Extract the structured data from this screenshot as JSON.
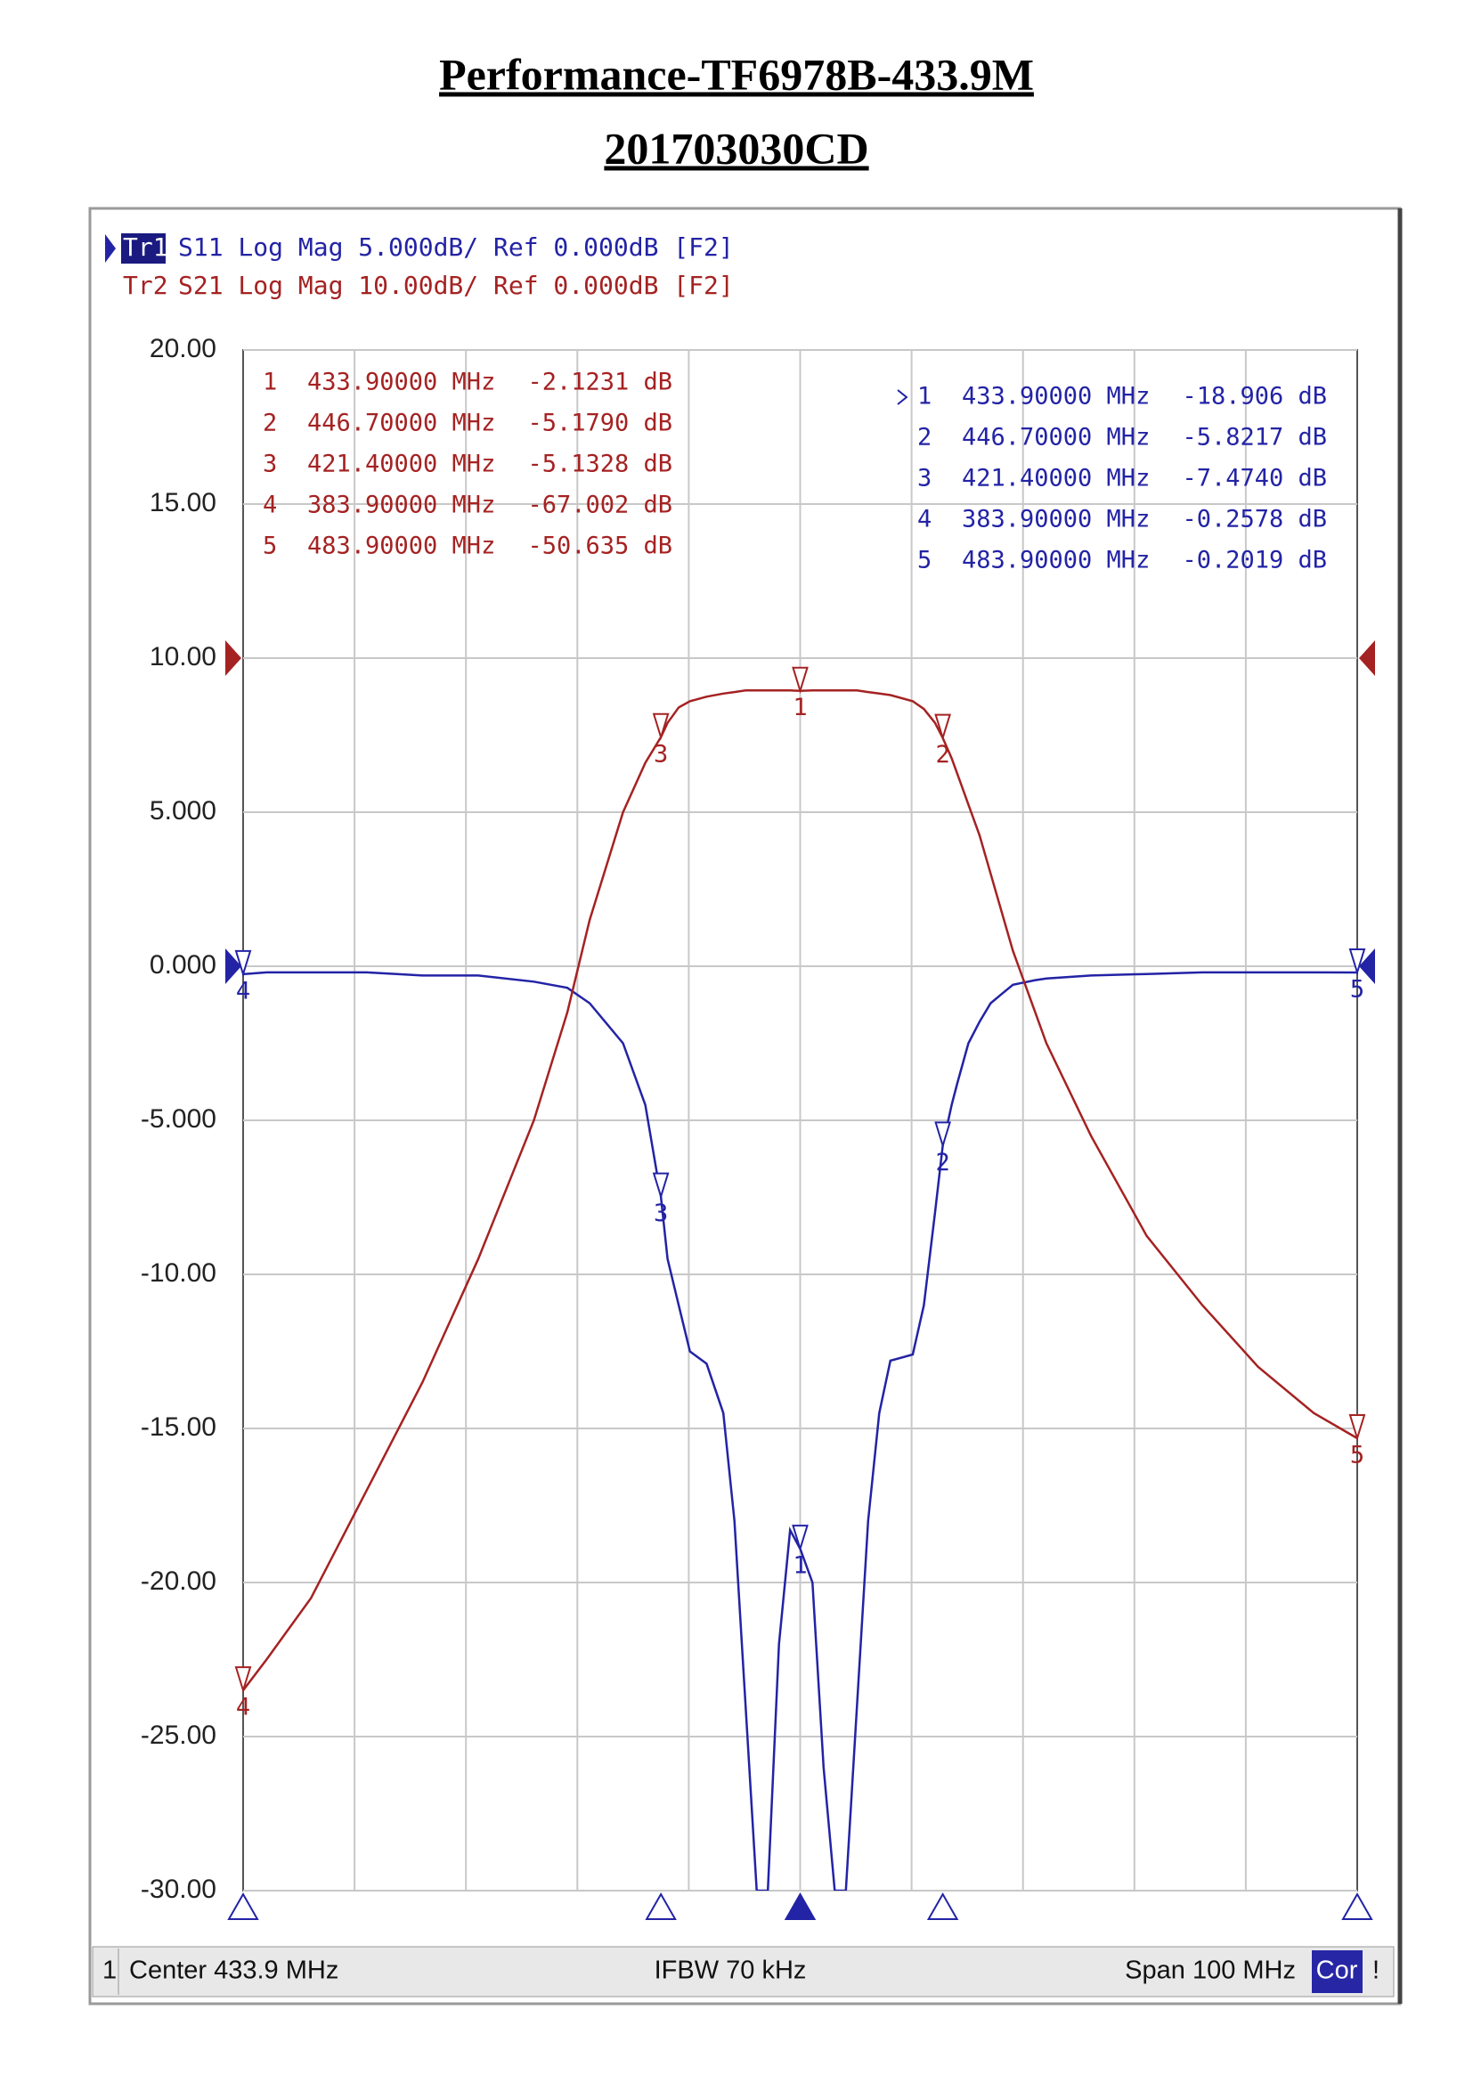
{
  "chart_data": {
    "type": "line",
    "title": "Performance-TF6978B-433.9M",
    "subtitle": "201703030CD",
    "x": [
      383.9,
      386,
      390,
      395,
      400,
      405,
      410,
      413,
      415,
      418,
      420,
      421.4,
      422,
      423,
      424,
      425.5,
      427,
      428,
      429,
      430,
      431,
      432,
      433,
      433.9,
      435,
      436,
      437,
      438,
      439,
      440,
      441,
      442,
      444,
      445,
      446,
      446.7,
      447.5,
      448,
      449,
      450,
      451,
      452,
      453,
      455,
      456,
      460,
      465,
      470,
      475,
      480,
      483.9
    ],
    "xlim": [
      383.9,
      483.9
    ],
    "ylim": [
      -30,
      20
    ],
    "y2lim": [
      -80,
      20
    ],
    "yticks": [
      {
        "value": 20,
        "label": "20.00"
      },
      {
        "value": 15,
        "label": "15.00"
      },
      {
        "value": 10,
        "label": "10.00"
      },
      {
        "value": 5,
        "label": "5.000"
      },
      {
        "value": 0,
        "label": "0.000"
      },
      {
        "value": -5,
        "label": "-5.000"
      },
      {
        "value": -10,
        "label": "-10.00"
      },
      {
        "value": -15,
        "label": "-15.00"
      },
      {
        "value": -20,
        "label": "-20.00"
      },
      {
        "value": -25,
        "label": "-25.00"
      },
      {
        "value": -30,
        "label": "-30.00"
      }
    ],
    "grid": true,
    "series": [
      {
        "name": "Tr1",
        "label": "S11 Log Mag 5.000dB/ Ref 0.000dB [F2]",
        "color": "#2323a6",
        "ref": 0,
        "values": [
          -0.258,
          -0.2,
          -0.2,
          -0.2,
          -0.3,
          -0.3,
          -0.5,
          -0.7,
          -1.2,
          -2.5,
          -4.5,
          -7.474,
          -9.5,
          -11,
          -12.5,
          -12.9,
          -14.5,
          -18,
          -24,
          -30,
          -30,
          -22,
          -18.3,
          -18.906,
          -20,
          -26,
          -30,
          -30,
          -24,
          -18,
          -14.5,
          -12.8,
          -12.6,
          -11,
          -8,
          -5.822,
          -4.5,
          -3.8,
          -2.5,
          -1.8,
          -1.2,
          -0.9,
          -0.6,
          -0.45,
          -0.4,
          -0.3,
          -0.25,
          -0.2,
          -0.2,
          -0.2,
          -0.202
        ],
        "markers": [
          {
            "name": "1",
            "active": true,
            "x": 433.9,
            "x_label": "433.90000 MHz",
            "value": -18.906,
            "value_label": "-18.906 dB"
          },
          {
            "name": "2",
            "x": 446.7,
            "x_label": "446.70000 MHz",
            "value": -5.8217,
            "value_label": "-5.8217 dB"
          },
          {
            "name": "3",
            "x": 421.4,
            "x_label": "421.40000 MHz",
            "value": -7.474,
            "value_label": "-7.4740 dB"
          },
          {
            "name": "4",
            "x": 383.9,
            "x_label": "383.90000 MHz",
            "value": -0.2578,
            "value_label": "-0.2578 dB"
          },
          {
            "name": "5",
            "x": 483.9,
            "x_label": "483.90000 MHz",
            "value": -0.2019,
            "value_label": "-0.2019 dB"
          }
        ]
      },
      {
        "name": "Tr2",
        "label": "S21 Log Mag 10.00dB/ Ref 0.000dB [F2]",
        "color": "#a52222",
        "axis": "y2",
        "ref": 0,
        "values": [
          -67.002,
          -65,
          -61,
          -54,
          -47,
          -39,
          -30,
          -23,
          -17,
          -10,
          -6.8,
          -5.133,
          -4.2,
          -3.2,
          -2.8,
          -2.5,
          -2.3,
          -2.2,
          -2.1,
          -2.1,
          -2.1,
          -2.1,
          -2.1,
          -2.123,
          -2.1,
          -2.1,
          -2.1,
          -2.1,
          -2.1,
          -2.2,
          -2.3,
          -2.4,
          -2.8,
          -3.3,
          -4.2,
          -5.179,
          -6.5,
          -7.5,
          -9.5,
          -11.5,
          -14,
          -16.5,
          -19,
          -23,
          -25,
          -31,
          -37.5,
          -42,
          -46,
          -49,
          -50.635
        ],
        "markers": [
          {
            "name": "1",
            "x": 433.9,
            "x_label": "433.90000 MHz",
            "value": -2.1231,
            "value_label": "-2.1231 dB"
          },
          {
            "name": "2",
            "x": 446.7,
            "x_label": "446.70000 MHz",
            "value": -5.179,
            "value_label": "-5.1790 dB"
          },
          {
            "name": "3",
            "x": 421.4,
            "x_label": "421.40000 MHz",
            "value": -5.1328,
            "value_label": "-5.1328 dB"
          },
          {
            "name": "4",
            "x": 383.9,
            "x_label": "383.90000 MHz",
            "value": -67.002,
            "value_label": "-67.002 dB"
          },
          {
            "name": "5",
            "x": 483.9,
            "x_label": "483.90000 MHz",
            "value": -50.635,
            "value_label": "-50.635 dB"
          }
        ]
      }
    ],
    "footer": {
      "channel": "1",
      "center": "Center 433.9 MHz",
      "ifbw": "IFBW 70 kHz",
      "span": "Span 100 MHz",
      "cor": "Cor",
      "flag": "!"
    }
  }
}
